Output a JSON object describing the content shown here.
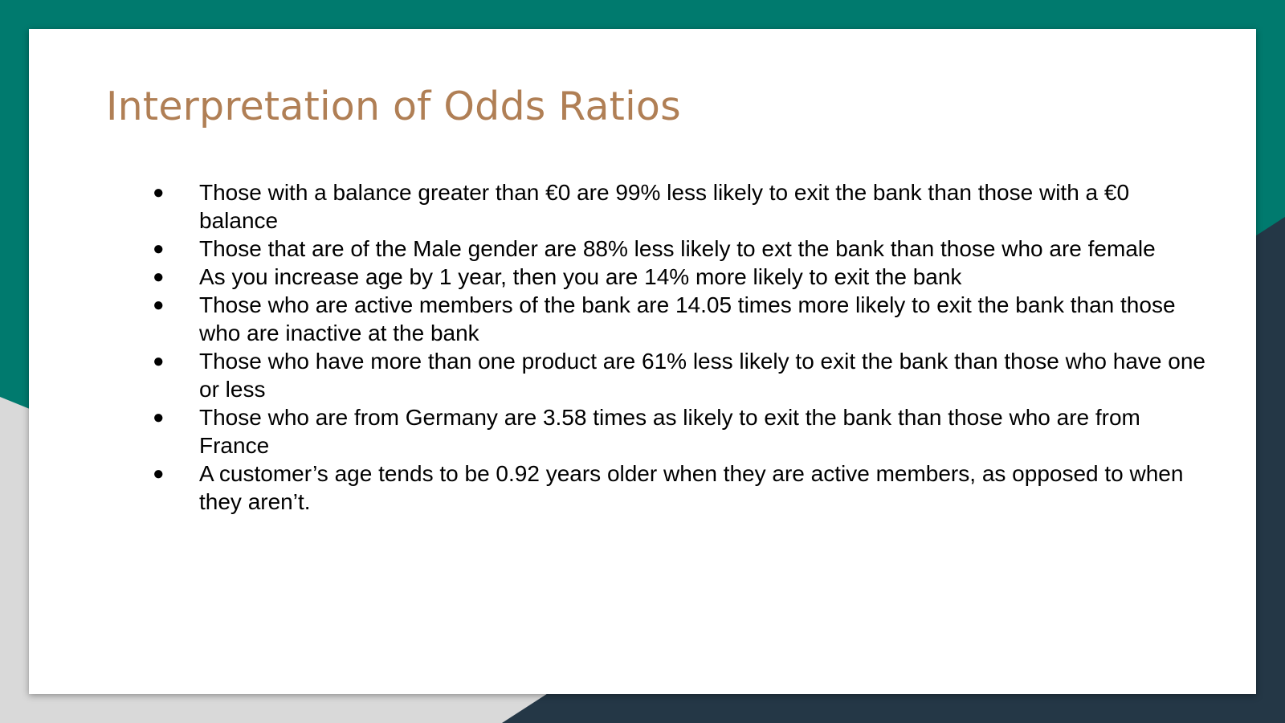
{
  "slide": {
    "title": "Interpretation of Odds Ratios",
    "bullet_glyph": "●",
    "bullets": [
      "Those with a balance greater than €0 are 99% less likely to exit the bank than those with a €0 balance",
      "Those that are of the Male gender are 88% less likely to ext the bank than those who are female",
      "As you increase age by 1 year, then you are 14% more likely to exit the bank",
      "Those who are active members of the bank are 14.05 times more likely to exit the bank than those who are inactive at the bank",
      "Those who have more than one product are 61% less likely to exit the bank than those who have one or less",
      "Those who are from Germany are 3.58 times as likely to exit the bank than those who are from France",
      "A customer’s age tends to be 0.92 years older when they are active members, as opposed to when they aren’t."
    ]
  },
  "colors": {
    "teal": "#007a6e",
    "dark_navy": "#243746",
    "light_gray": "#d9d9d9",
    "title_color": "#b07f55"
  }
}
